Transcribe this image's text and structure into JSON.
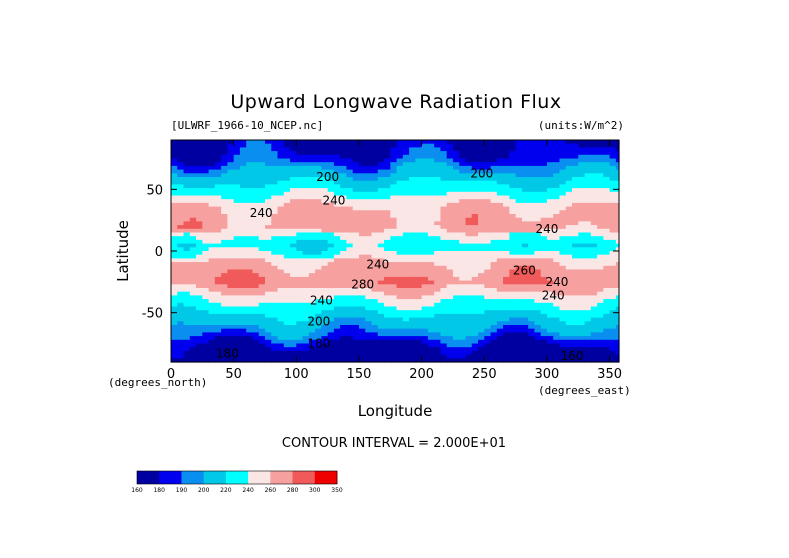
{
  "chart_data": {
    "type": "heatmap",
    "title": "Upward Longwave Radiation Flux",
    "dataset_label": "[ULWRF_1966-10_NCEP.nc]",
    "units_label": "(units:W/m^2)",
    "xlabel": "Longitude",
    "ylabel": "Latitude",
    "x_units": "(degrees_east)",
    "y_units": "(degrees_north)",
    "xlim": [
      0,
      357.5
    ],
    "ylim": [
      -90,
      90
    ],
    "x_ticks": [
      0,
      50,
      100,
      150,
      200,
      250,
      300,
      350
    ],
    "y_ticks": [
      50,
      0,
      -50
    ],
    "contour_interval_text": "CONTOUR INTERVAL = 2.000E+01",
    "contour_labels": [
      {
        "text": "200",
        "lon": 125,
        "lat": 60
      },
      {
        "text": "200",
        "lon": 248,
        "lat": 63
      },
      {
        "text": "240",
        "lon": 72,
        "lat": 31
      },
      {
        "text": "240",
        "lon": 130,
        "lat": 41
      },
      {
        "text": "240",
        "lon": 300,
        "lat": 18
      },
      {
        "text": "240",
        "lon": 165,
        "lat": -11
      },
      {
        "text": "280",
        "lon": 153,
        "lat": -27
      },
      {
        "text": "240",
        "lon": 120,
        "lat": -40
      },
      {
        "text": "240",
        "lon": 305,
        "lat": -36
      },
      {
        "text": "200",
        "lon": 118,
        "lat": -57
      },
      {
        "text": "180",
        "lon": 118,
        "lat": -75
      },
      {
        "text": "180",
        "lon": 45,
        "lat": -83
      },
      {
        "text": "160",
        "lon": 320,
        "lat": -85
      },
      {
        "text": "240",
        "lon": 308,
        "lat": -25
      },
      {
        "text": "260",
        "lon": 282,
        "lat": -16
      }
    ],
    "colorbar": {
      "levels": [
        160,
        180,
        190,
        200,
        220,
        240,
        260,
        280,
        300,
        350
      ],
      "level_labels": [
        "160",
        "180",
        "190",
        "200",
        "220",
        "240",
        "260",
        "280",
        "300",
        "350"
      ],
      "colors": [
        "#0000a0",
        "#0000ee",
        "#0a8ef0",
        "#00c8e6",
        "#00ffff",
        "#fbe6e6",
        "#f6a0a0",
        "#f05a5a",
        "#ee0000"
      ]
    },
    "field_bands": [
      {
        "lat": 90,
        "value": 175
      },
      {
        "lat": 75,
        "value": 185
      },
      {
        "lat": 62,
        "value": 205
      },
      {
        "lat": 50,
        "value": 230
      },
      {
        "lat": 35,
        "value": 262
      },
      {
        "lat": 20,
        "value": 268
      },
      {
        "lat": 5,
        "value": 232
      },
      {
        "lat": -10,
        "value": 262
      },
      {
        "lat": -25,
        "value": 278
      },
      {
        "lat": -40,
        "value": 242
      },
      {
        "lat": -55,
        "value": 212
      },
      {
        "lat": -68,
        "value": 192
      },
      {
        "lat": -80,
        "value": 172
      },
      {
        "lat": -90,
        "value": 162
      }
    ]
  }
}
